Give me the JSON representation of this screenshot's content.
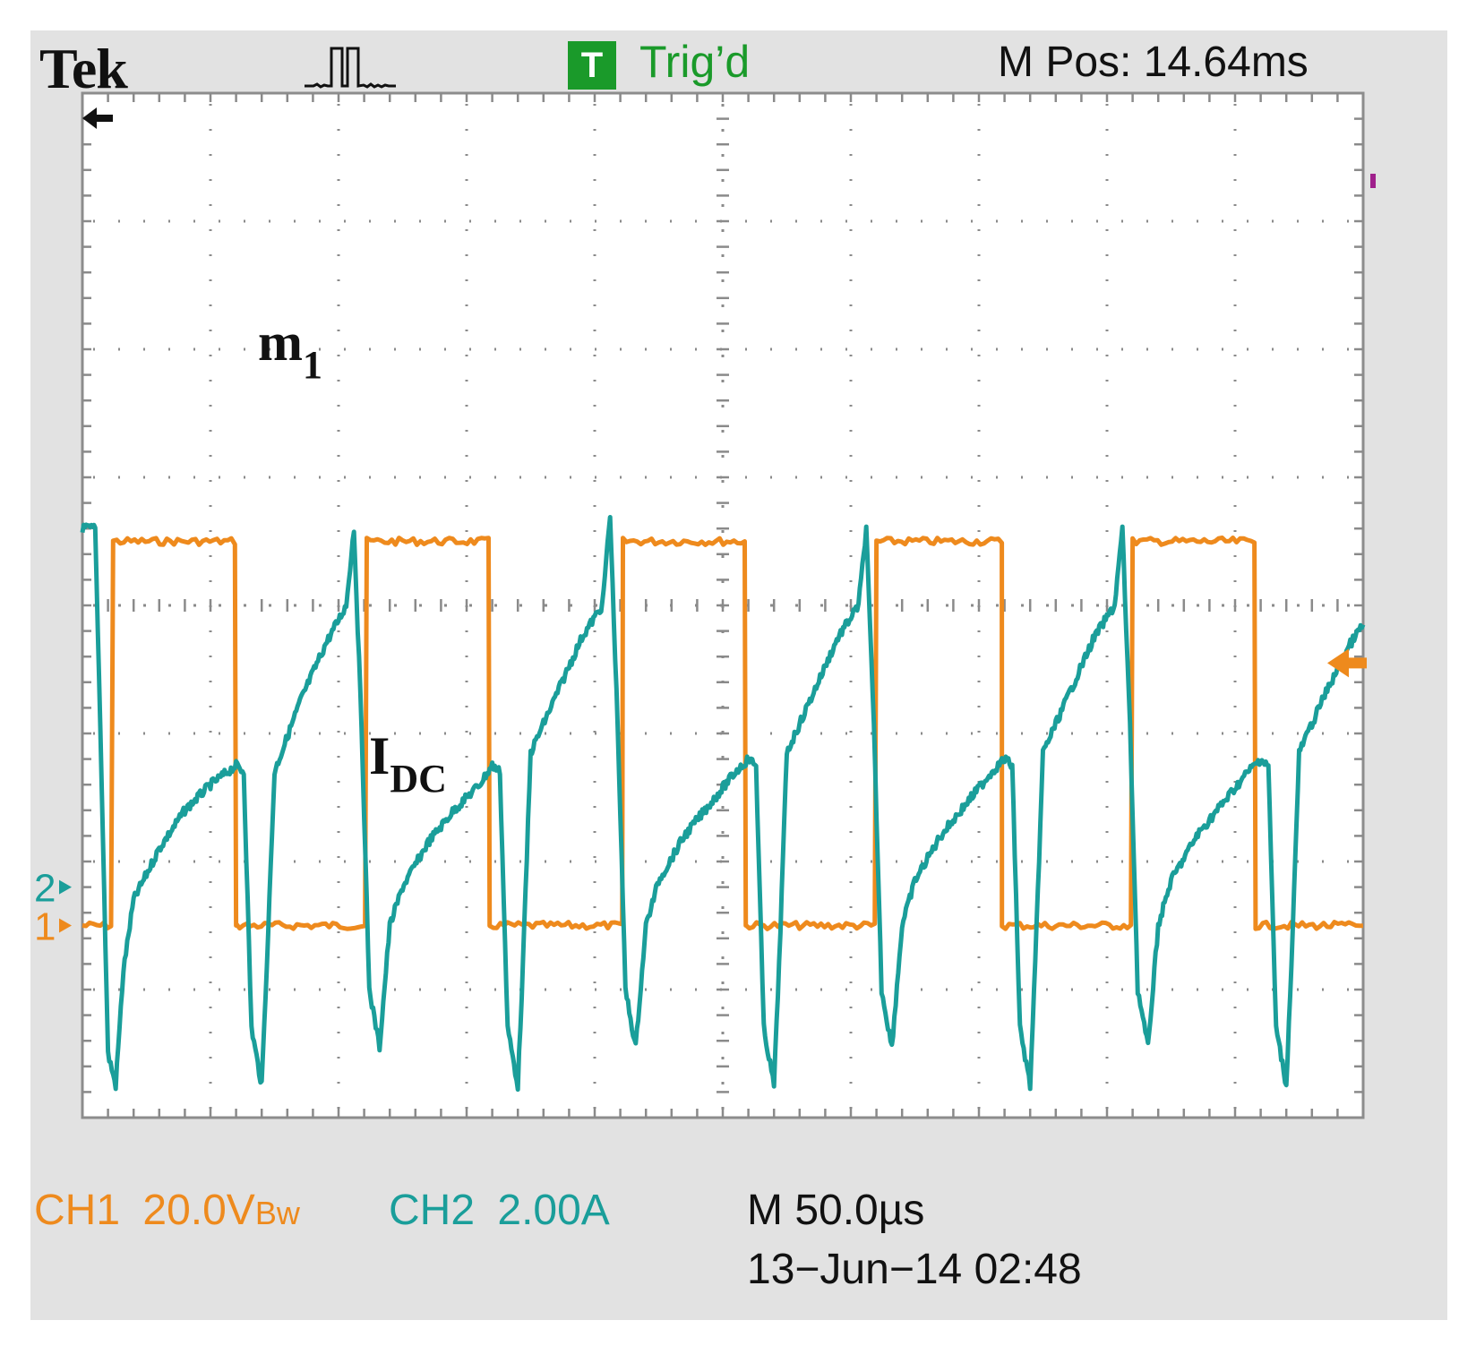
{
  "header": {
    "brand": "Tek",
    "trigger_badge": "T",
    "trigger_status": "Trig’d",
    "horizontal_position": "M Pos: 14.64ms"
  },
  "footer": {
    "ch1_label": "CH1",
    "ch1_scale": "20.0V",
    "ch1_bw": "Bw",
    "ch2_label": "CH2",
    "ch2_scale": "2.00A",
    "timebase": "M 50.0µs",
    "datetime": "13−Jun−14 02:48"
  },
  "markers": {
    "ch1_ground": "1",
    "ch2_ground": "2"
  },
  "colors": {
    "ch1": "#ee8a1d",
    "ch2": "#1a9e9a",
    "grid": "#8a8a8a",
    "trigger_green": "#1a9a2a",
    "screen_bg": "#ffffff",
    "bezel_bg": "#e2e2e2"
  },
  "chart_data": {
    "type": "line",
    "title": "",
    "xlabel": "",
    "ylabel": "",
    "grid": true,
    "divisions": {
      "x": 10,
      "y": 8
    },
    "xlim_us": [
      0,
      500
    ],
    "annotations": [
      {
        "text": "m",
        "subscript": "1",
        "series": "m1"
      },
      {
        "text": "I",
        "subscript": "DC",
        "series": "IDC"
      }
    ],
    "series": [
      {
        "name": "m1",
        "channel": 1,
        "units": "V",
        "scale_per_div": 20,
        "low_level_V": 0,
        "high_level_V": 60,
        "edges_us": [
          [
            0,
            12
          ],
          [
            12,
            60
          ],
          [
            60,
            111
          ],
          [
            111,
            159
          ],
          [
            159,
            211
          ],
          [
            211,
            259
          ],
          [
            259,
            310
          ],
          [
            310,
            359
          ],
          [
            359,
            410
          ],
          [
            410,
            458
          ],
          [
            458,
            500
          ]
        ],
        "edge_levels": [
          0,
          1,
          0,
          1,
          0,
          1,
          0,
          1,
          0,
          1,
          0
        ]
      },
      {
        "name": "IDC",
        "channel": 2,
        "units": "A",
        "scale_per_div": 2,
        "points": [
          [
            0,
            5.6
          ],
          [
            5,
            5.6
          ],
          [
            7,
            2.5
          ],
          [
            10,
            -2.6
          ],
          [
            13,
            -3.1
          ],
          [
            16,
            -1.3
          ],
          [
            20,
            -0.2
          ],
          [
            30,
            0.6
          ],
          [
            40,
            1.2
          ],
          [
            50,
            1.6
          ],
          [
            60,
            1.9
          ],
          [
            63,
            1.8
          ],
          [
            66,
            -2.2
          ],
          [
            70,
            -3.1
          ],
          [
            72,
            -1.2
          ],
          [
            75,
            1.8
          ],
          [
            85,
            2.9
          ],
          [
            95,
            3.8
          ],
          [
            103,
            4.4
          ],
          [
            106,
            5.6
          ],
          [
            109,
            2.5
          ],
          [
            112,
            -1.6
          ],
          [
            116,
            -2.5
          ],
          [
            120,
            -0.6
          ],
          [
            125,
            0.0
          ],
          [
            135,
            0.7
          ],
          [
            145,
            1.2
          ],
          [
            155,
            1.6
          ],
          [
            160,
            1.9
          ],
          [
            163,
            1.8
          ],
          [
            166,
            -2.2
          ],
          [
            170,
            -3.1
          ],
          [
            172,
            -1.2
          ],
          [
            175,
            2.1
          ],
          [
            185,
            3.0
          ],
          [
            195,
            3.9
          ],
          [
            203,
            4.4
          ],
          [
            206,
            5.8
          ],
          [
            209,
            2.5
          ],
          [
            212,
            -1.6
          ],
          [
            216,
            -2.5
          ],
          [
            220,
            -0.6
          ],
          [
            225,
            0.1
          ],
          [
            235,
            0.8
          ],
          [
            245,
            1.3
          ],
          [
            255,
            1.8
          ],
          [
            260,
            2.0
          ],
          [
            263,
            1.9
          ],
          [
            266,
            -2.2
          ],
          [
            270,
            -3.1
          ],
          [
            272,
            -1.2
          ],
          [
            275,
            2.1
          ],
          [
            285,
            3.0
          ],
          [
            295,
            3.9
          ],
          [
            303,
            4.4
          ],
          [
            306,
            5.6
          ],
          [
            309,
            2.5
          ],
          [
            312,
            -1.6
          ],
          [
            316,
            -2.5
          ],
          [
            320,
            -0.6
          ],
          [
            325,
            0.1
          ],
          [
            335,
            0.8
          ],
          [
            345,
            1.3
          ],
          [
            355,
            1.8
          ],
          [
            360,
            2.0
          ],
          [
            363,
            1.9
          ],
          [
            366,
            -2.2
          ],
          [
            370,
            -3.1
          ],
          [
            372,
            -1.2
          ],
          [
            375,
            2.1
          ],
          [
            385,
            3.0
          ],
          [
            395,
            3.9
          ],
          [
            403,
            4.4
          ],
          [
            406,
            5.6
          ],
          [
            409,
            2.5
          ],
          [
            412,
            -1.6
          ],
          [
            416,
            -2.5
          ],
          [
            420,
            -0.6
          ],
          [
            425,
            0.1
          ],
          [
            435,
            0.8
          ],
          [
            445,
            1.3
          ],
          [
            455,
            1.8
          ],
          [
            460,
            2.0
          ],
          [
            463,
            1.9
          ],
          [
            466,
            -2.2
          ],
          [
            470,
            -3.1
          ],
          [
            472,
            -1.2
          ],
          [
            475,
            2.1
          ],
          [
            485,
            3.0
          ],
          [
            495,
            3.8
          ],
          [
            500,
            4.1
          ]
        ]
      }
    ]
  }
}
